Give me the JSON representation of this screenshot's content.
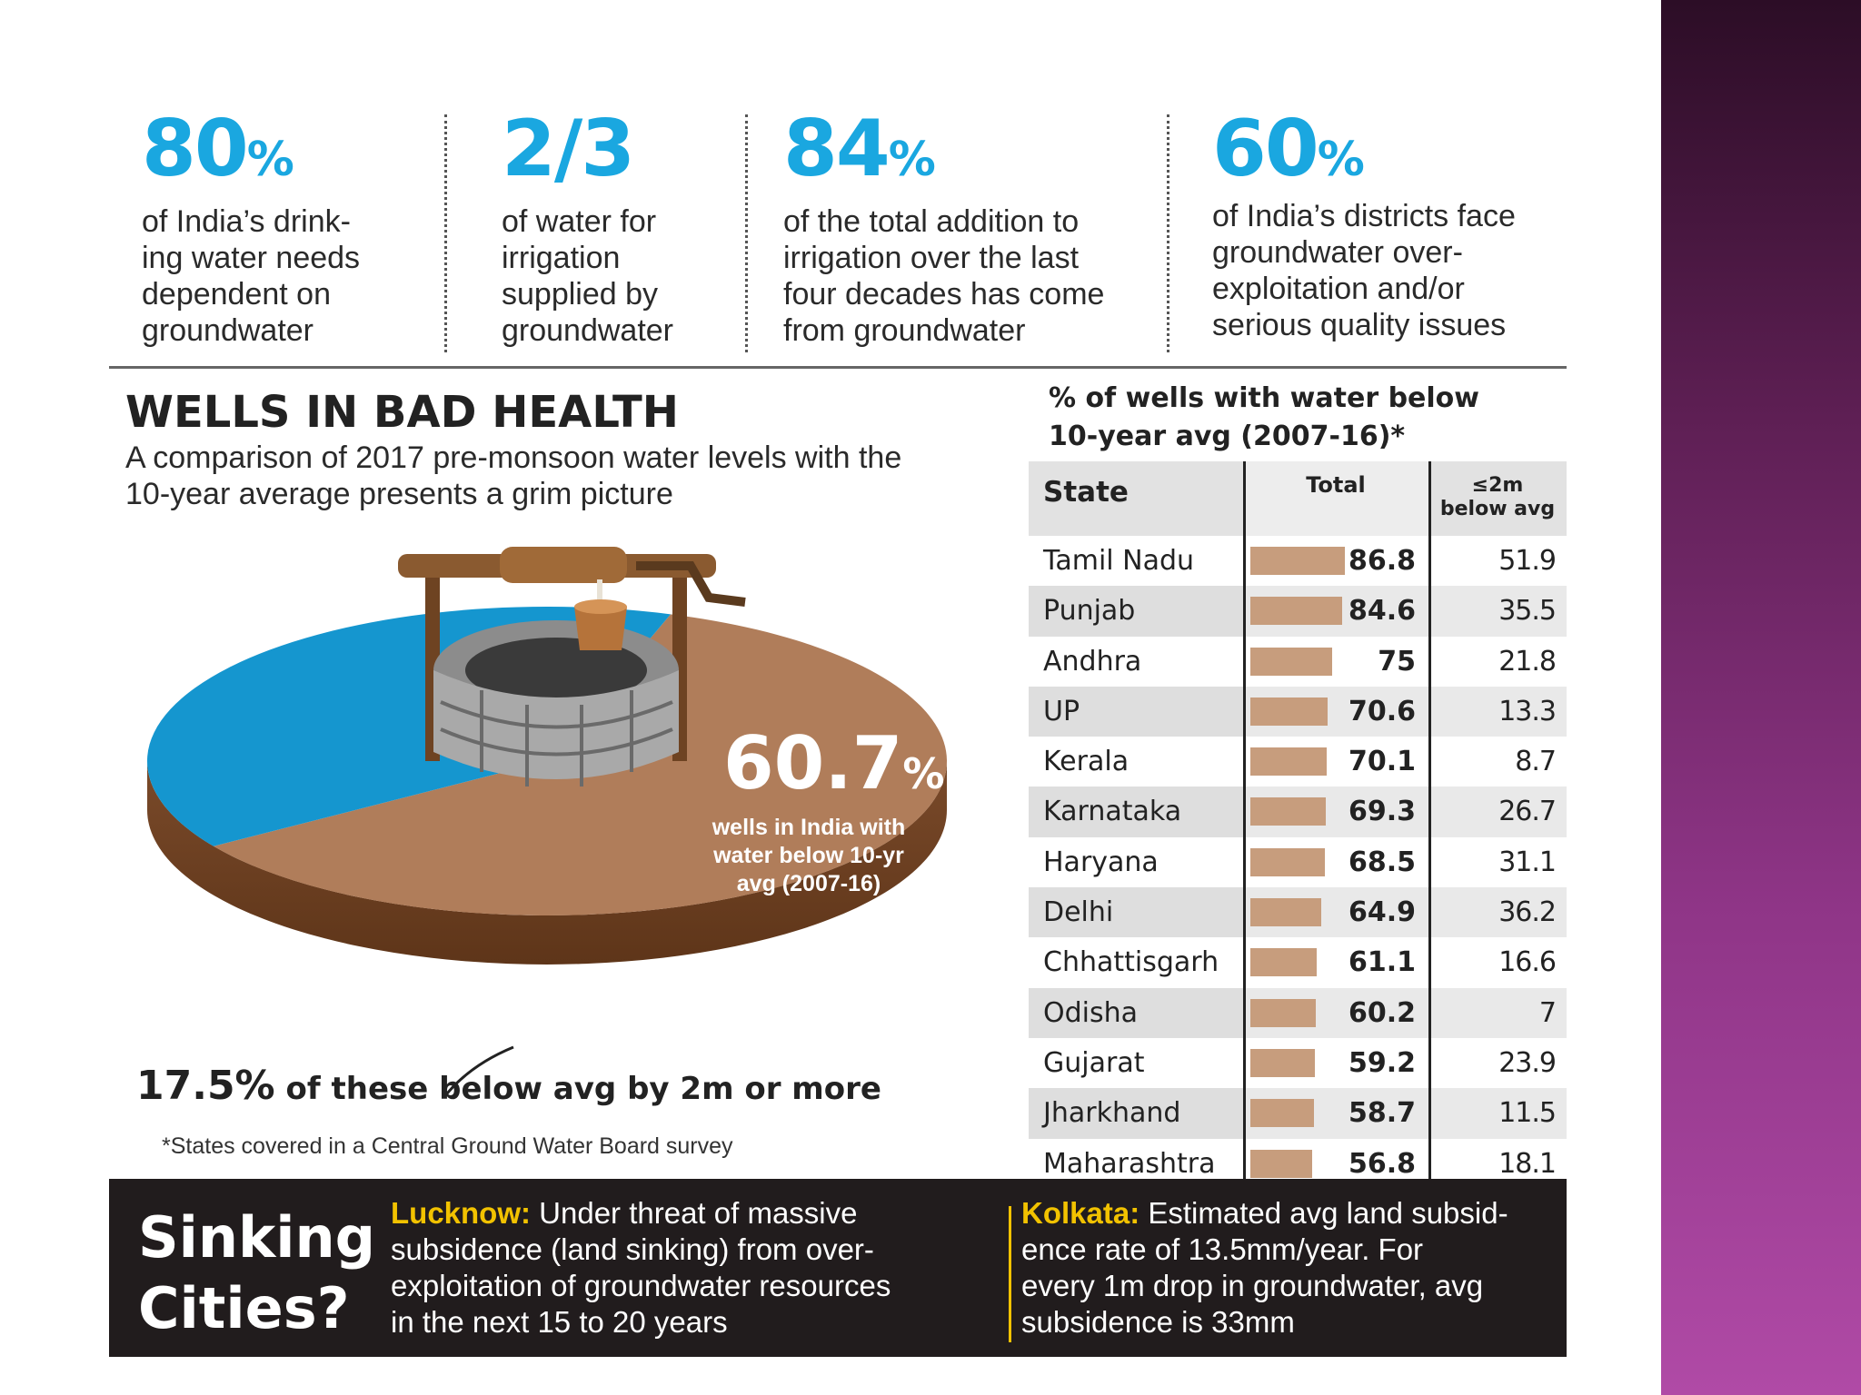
{
  "stats": [
    {
      "value": "80",
      "unit": "%",
      "text": [
        "of India’s drink-",
        "ing water needs",
        "dependent on",
        "groundwater"
      ]
    },
    {
      "value": "2/3",
      "unit": "",
      "text": [
        "of water for",
        "irrigation",
        "supplied by",
        "groundwater"
      ]
    },
    {
      "value": "84",
      "unit": "%",
      "text": [
        "of the total addition to",
        "irrigation over the last",
        "four decades has come",
        "from groundwater"
      ]
    },
    {
      "value": "60",
      "unit": "%",
      "text": [
        "of India’s districts face",
        "groundwater over-",
        "exploitation and/or",
        "serious quality issues"
      ]
    }
  ],
  "left": {
    "title": "WELLS IN BAD HEALTH",
    "subtitle_lines": [
      "A comparison of 2017 pre-monsoon water levels with the",
      "10-year average presents a grim picture"
    ],
    "pie_value": "60.7",
    "pie_unit": "%",
    "pie_caption_lines": [
      "wells in India with",
      "water below 10-yr",
      "avg (2007-16)"
    ],
    "sub_stat_big": "17.5%",
    "sub_stat_rest": " of these below avg by 2m or more",
    "footnote": "*States covered in a Central Ground Water Board survey"
  },
  "table": {
    "heading_lines": [
      "% of wells with water below",
      "10-year avg (2007-16)*"
    ],
    "col_state": "State",
    "col_total": "Total",
    "col_below_lines": [
      "≤2m",
      "below avg"
    ]
  },
  "colors": {
    "accent_blue": "#1aa7e0",
    "pie_brown": "#b07d5a",
    "pie_blue": "#1596cf",
    "bar_tan": "#c79d7d",
    "city_yellow": "#f2c200"
  },
  "sinking": {
    "title_lines": [
      "Sinking",
      "Cities?"
    ],
    "lucknow_city": "Lucknow:",
    "lucknow_lines": [
      " Under threat of massive",
      "subsidence (land sinking) from over-",
      "exploitation of groundwater resources",
      "in the next 15 to 20 years"
    ],
    "kolkata_city": "Kolkata:",
    "kolkata_lines": [
      " Estimated avg land subsid-",
      "ence rate of 13.5mm/year. For",
      "every 1m drop in groundwater, avg",
      "subsidence is 33mm"
    ]
  },
  "chart_data": [
    {
      "type": "pie",
      "categories": [
        "wells in India with water below 10-yr avg (2007-16)",
        "other wells"
      ],
      "values": [
        60.7,
        39.3
      ]
    },
    {
      "type": "bar",
      "categories": [
        "Tamil Nadu",
        "Punjab",
        "Andhra",
        "UP",
        "Kerala",
        "Karnataka",
        "Haryana",
        "Delhi",
        "Chhattisgarh",
        "Odisha",
        "Gujarat",
        "Jharkhand",
        "Maharashtra"
      ],
      "series": [
        {
          "name": "Total",
          "values": [
            86.8,
            84.6,
            75,
            70.6,
            70.1,
            69.3,
            68.5,
            64.9,
            61.1,
            60.2,
            59.2,
            58.7,
            56.8
          ]
        },
        {
          "name": "≤2m below avg",
          "values": [
            51.9,
            35.5,
            21.8,
            13.3,
            8.7,
            26.7,
            31.1,
            36.2,
            16.6,
            7,
            23.9,
            11.5,
            18.1
          ]
        }
      ],
      "value_labels": {
        "total": [
          "86.8",
          "84.6",
          "75",
          "70.6",
          "70.1",
          "69.3",
          "68.5",
          "64.9",
          "61.1",
          "60.2",
          "59.2",
          "58.7",
          "56.8"
        ],
        "below": [
          "51.9",
          "35.5",
          "21.8",
          "13.3",
          "8.7",
          "26.7",
          "31.1",
          "36.2",
          "16.6",
          "7",
          "23.9",
          "11.5",
          "18.1"
        ]
      }
    }
  ]
}
